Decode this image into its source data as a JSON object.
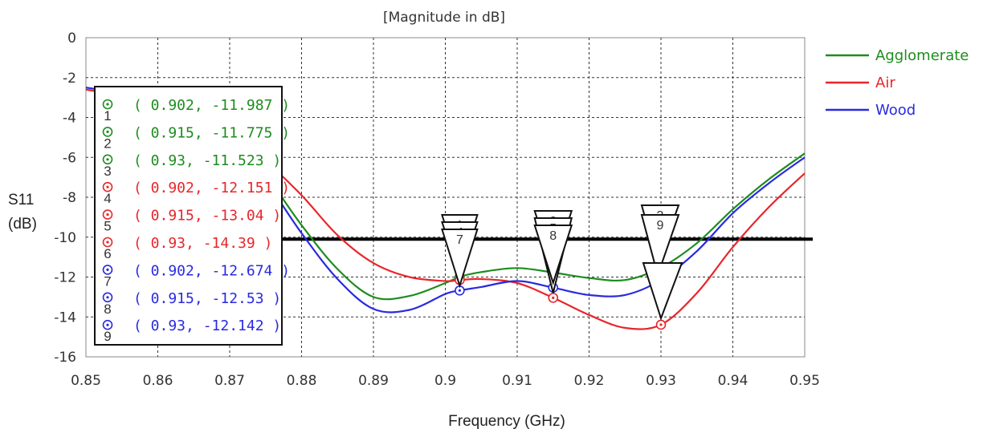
{
  "chart_data": {
    "type": "line",
    "title": "[Magnitude in dB]",
    "xlabel": "Frequency (GHz)",
    "ylabel_lines": [
      "S11",
      "(dB)"
    ],
    "xlim": [
      0.85,
      0.95
    ],
    "ylim": [
      -16,
      0
    ],
    "x_ticks": [
      "0.85",
      "0.86",
      "0.87",
      "0.88",
      "0.89",
      "0.9",
      "0.91",
      "0.92",
      "0.93",
      "0.94",
      "0.95"
    ],
    "y_ticks": [
      "0",
      "-2",
      "-4",
      "-6",
      "-8",
      "-10",
      "-12",
      "-14",
      "-16"
    ],
    "grid": true,
    "legend_position": "right",
    "threshold": -10.1,
    "series": [
      {
        "name": "Agglomerate",
        "color": "#1e8c1e",
        "points": [
          [
            0.85,
            -2.6
          ],
          [
            0.855,
            -2.9
          ],
          [
            0.86,
            -3.3
          ],
          [
            0.865,
            -3.9
          ],
          [
            0.87,
            -5.0
          ],
          [
            0.875,
            -6.9
          ],
          [
            0.88,
            -9.4
          ],
          [
            0.885,
            -11.6
          ],
          [
            0.89,
            -13.0
          ],
          [
            0.895,
            -12.95
          ],
          [
            0.9,
            -12.3
          ],
          [
            0.902,
            -11.987
          ],
          [
            0.905,
            -11.75
          ],
          [
            0.91,
            -11.55
          ],
          [
            0.915,
            -11.775
          ],
          [
            0.92,
            -12.05
          ],
          [
            0.925,
            -12.15
          ],
          [
            0.93,
            -11.523
          ],
          [
            0.935,
            -10.3
          ],
          [
            0.94,
            -8.6
          ],
          [
            0.945,
            -7.1
          ],
          [
            0.95,
            -5.8
          ]
        ]
      },
      {
        "name": "Air",
        "color": "#e8262a",
        "points": [
          [
            0.85,
            -2.6
          ],
          [
            0.855,
            -2.9
          ],
          [
            0.86,
            -3.2
          ],
          [
            0.865,
            -3.8
          ],
          [
            0.87,
            -4.9
          ],
          [
            0.875,
            -6.2
          ],
          [
            0.88,
            -7.9
          ],
          [
            0.885,
            -9.9
          ],
          [
            0.89,
            -11.3
          ],
          [
            0.895,
            -12.0
          ],
          [
            0.9,
            -12.2
          ],
          [
            0.902,
            -12.151
          ],
          [
            0.905,
            -12.1
          ],
          [
            0.91,
            -12.3
          ],
          [
            0.915,
            -13.04
          ],
          [
            0.92,
            -13.9
          ],
          [
            0.925,
            -14.55
          ],
          [
            0.93,
            -14.39
          ],
          [
            0.935,
            -12.8
          ],
          [
            0.94,
            -10.5
          ],
          [
            0.945,
            -8.5
          ],
          [
            0.95,
            -6.8
          ]
        ]
      },
      {
        "name": "Wood",
        "color": "#2a2ae0",
        "points": [
          [
            0.85,
            -2.5
          ],
          [
            0.855,
            -2.8
          ],
          [
            0.86,
            -3.3
          ],
          [
            0.865,
            -4.0
          ],
          [
            0.87,
            -5.2
          ],
          [
            0.875,
            -7.2
          ],
          [
            0.88,
            -9.8
          ],
          [
            0.885,
            -12.1
          ],
          [
            0.89,
            -13.6
          ],
          [
            0.895,
            -13.65
          ],
          [
            0.9,
            -12.85
          ],
          [
            0.902,
            -12.674
          ],
          [
            0.905,
            -12.5
          ],
          [
            0.91,
            -12.2
          ],
          [
            0.915,
            -12.53
          ],
          [
            0.92,
            -12.9
          ],
          [
            0.925,
            -12.9
          ],
          [
            0.93,
            -12.142
          ],
          [
            0.935,
            -10.7
          ],
          [
            0.94,
            -8.8
          ],
          [
            0.945,
            -7.3
          ],
          [
            0.95,
            -6.0
          ]
        ]
      }
    ],
    "markers": [
      {
        "id": "1",
        "x": 0.902,
        "y": -11.987,
        "series": 0,
        "text": "( 0.902, -11.987 )"
      },
      {
        "id": "2",
        "x": 0.915,
        "y": -11.775,
        "series": 0,
        "text": "( 0.915, -11.775 )"
      },
      {
        "id": "3",
        "x": 0.93,
        "y": -11.523,
        "series": 0,
        "text": "( 0.93, -11.523 )"
      },
      {
        "id": "4",
        "x": 0.902,
        "y": -12.151,
        "series": 1,
        "text": "( 0.902, -12.151 )"
      },
      {
        "id": "5",
        "x": 0.915,
        "y": -13.04,
        "series": 1,
        "text": "( 0.915, -13.04 )"
      },
      {
        "id": "6",
        "x": 0.93,
        "y": -14.39,
        "series": 1,
        "text": "( 0.93, -14.39 )"
      },
      {
        "id": "7",
        "x": 0.902,
        "y": -12.674,
        "series": 2,
        "text": "( 0.902, -12.674 )"
      },
      {
        "id": "8",
        "x": 0.915,
        "y": -12.53,
        "series": 2,
        "text": "( 0.915, -12.53 )"
      },
      {
        "id": "9",
        "x": 0.93,
        "y": -12.142,
        "series": 2,
        "text": "( 0.93, -12.142 )"
      }
    ]
  }
}
